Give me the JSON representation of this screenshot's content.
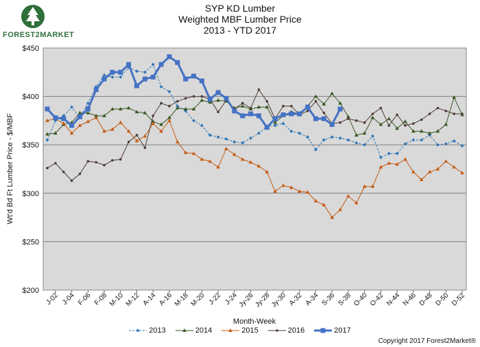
{
  "header": {
    "title_line1": "SYP KD Lumber",
    "title_line2": "Weighted MBF Lumber Price",
    "title_line3": "2013 - YTD 2017"
  },
  "logo": {
    "text": "FOREST2MARKET"
  },
  "footer": {
    "copyright": "Copyright 2017 Forest2Market®"
  },
  "chart_data": {
    "type": "line",
    "xlabel": "Month-Week",
    "ylabel": "Wt'd Bd Ft Lumber Price - $/MBF",
    "ylim": [
      200,
      450
    ],
    "yticks": [
      "$200",
      "$250",
      "$300",
      "$350",
      "$400",
      "$450"
    ],
    "xticks": [
      "J-02",
      "J-04",
      "F-06",
      "F-08",
      "M-10",
      "M-12",
      "A-14",
      "A-16",
      "M-18",
      "M-20",
      "J-22",
      "J-24",
      "Jy-26",
      "Jy-28",
      "Jy-30",
      "A-32",
      "A-34",
      "S-36",
      "S-38",
      "O-40",
      "O-42",
      "N-44",
      "N-46",
      "D-48",
      "D-50",
      "D-52"
    ],
    "grid": true,
    "legend_position": "bottom",
    "colors": {
      "2013": "#2e75b6",
      "2014": "#385723",
      "2015": "#c55a11",
      "2016": "#4d3b35",
      "2017": "#4472c4"
    },
    "series": [
      {
        "name": "2013",
        "style": "dashed-diamond",
        "values": [
          355,
          375,
          380,
          389,
          378,
          393,
          410,
          422,
          420,
          420,
          430,
          426,
          425,
          433,
          410,
          405,
          390,
          385,
          375,
          370,
          360,
          358,
          356,
          353,
          352,
          357,
          362,
          369,
          370,
          372,
          364,
          362,
          358,
          345,
          355,
          358,
          357,
          355,
          352,
          350,
          359,
          337,
          341,
          341,
          351,
          355,
          355,
          360,
          350,
          351,
          354,
          349
        ]
      },
      {
        "name": "2014",
        "style": "solid-triangle",
        "values": [
          361,
          362,
          371,
          373,
          383,
          383,
          380,
          380,
          387,
          387,
          388,
          384,
          383,
          374,
          371,
          378,
          388,
          387,
          387,
          396,
          394,
          396,
          395,
          388,
          390,
          387,
          389,
          389,
          373,
          380,
          384,
          382,
          390,
          400,
          392,
          403,
          393,
          379,
          360,
          362,
          378,
          371,
          377,
          367,
          374,
          364,
          364,
          362,
          364,
          371,
          399,
          381
        ]
      },
      {
        "name": "2015",
        "style": "solid-triangle",
        "values": [
          375,
          377,
          372,
          362,
          370,
          374,
          378,
          364,
          366,
          373,
          364,
          354,
          359,
          372,
          364,
          375,
          353,
          342,
          341,
          335,
          333,
          327,
          346,
          340,
          335,
          332,
          328,
          322,
          302,
          308,
          306,
          302,
          301,
          292,
          288,
          275,
          283,
          297,
          290,
          307,
          307,
          327,
          331,
          330,
          335,
          322,
          314,
          322,
          325,
          333,
          327,
          321
        ]
      },
      {
        "name": "2016",
        "style": "solid-circle",
        "values": [
          326,
          331,
          322,
          313,
          320,
          333,
          332,
          329,
          334,
          335,
          353,
          360,
          347,
          380,
          393,
          390,
          395,
          398,
          400,
          400,
          397,
          384,
          396,
          387,
          393,
          388,
          407,
          395,
          377,
          390,
          390,
          381,
          385,
          395,
          383,
          372,
          373,
          377,
          375,
          373,
          382,
          388,
          370,
          381,
          370,
          372,
          376,
          382,
          388,
          385,
          382,
          382
        ]
      },
      {
        "name": "2017",
        "style": "solid-square",
        "values": [
          387,
          378,
          377,
          370,
          379,
          387,
          407,
          418,
          425,
          425,
          433,
          411,
          418,
          420,
          433,
          441,
          435,
          418,
          421,
          416,
          397,
          404,
          398,
          385,
          380,
          382,
          380,
          368,
          377,
          381,
          382,
          382,
          389,
          377,
          377,
          371,
          387
        ]
      }
    ]
  }
}
